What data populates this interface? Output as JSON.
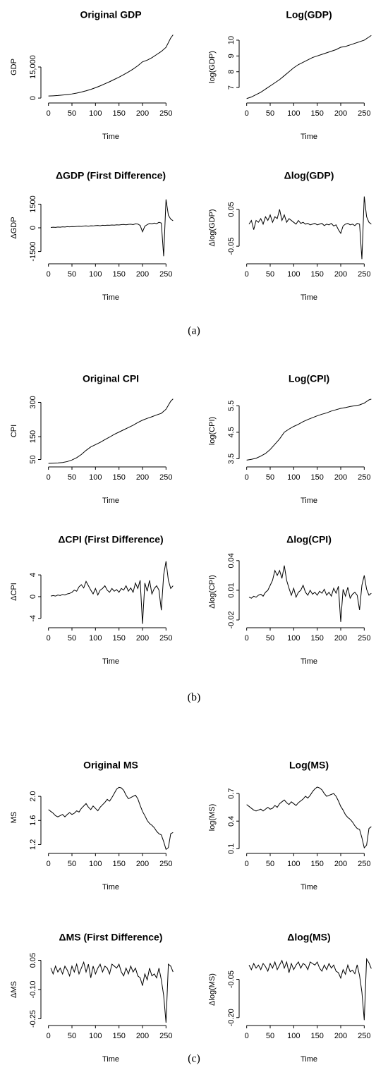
{
  "chart_data": [
    {
      "type": "line",
      "title": "Original GDP",
      "xlabel": "Time",
      "ylabel": "GDP",
      "xlim": [
        -10,
        275
      ],
      "ylim": [
        -1000,
        31000
      ],
      "xticks": [
        0,
        50,
        100,
        150,
        200,
        250
      ],
      "yticks": [
        0,
        {
          "value": 15000,
          "label": "15,000"
        }
      ],
      "x": [
        0,
        10,
        20,
        30,
        40,
        50,
        60,
        70,
        80,
        90,
        100,
        110,
        120,
        130,
        140,
        150,
        160,
        170,
        180,
        190,
        200,
        210,
        220,
        230,
        240,
        250,
        260,
        265
      ],
      "values": [
        1000,
        1100,
        1250,
        1450,
        1700,
        2000,
        2400,
        2900,
        3500,
        4200,
        5000,
        5900,
        6900,
        7900,
        9000,
        10100,
        11300,
        12600,
        14000,
        15600,
        17500,
        18300,
        19500,
        21000,
        22500,
        24500,
        29000,
        30500
      ]
    },
    {
      "type": "line",
      "title": "Log(GDP)",
      "xlabel": "Time",
      "ylabel": "log(GDP)",
      "xlim": [
        -10,
        275
      ],
      "ylim": [
        6.2,
        10.4
      ],
      "xticks": [
        0,
        50,
        100,
        150,
        200,
        250
      ],
      "yticks": [
        7,
        8,
        9,
        10
      ],
      "x": [
        0,
        10,
        20,
        30,
        40,
        50,
        60,
        70,
        80,
        90,
        100,
        110,
        120,
        130,
        140,
        150,
        160,
        170,
        180,
        190,
        200,
        210,
        220,
        230,
        240,
        250,
        260,
        265
      ],
      "values": [
        6.3,
        6.4,
        6.55,
        6.7,
        6.9,
        7.1,
        7.3,
        7.5,
        7.75,
        8.0,
        8.25,
        8.45,
        8.6,
        8.75,
        8.9,
        9.0,
        9.1,
        9.2,
        9.3,
        9.4,
        9.55,
        9.6,
        9.7,
        9.8,
        9.9,
        10.0,
        10.2,
        10.3
      ]
    },
    {
      "type": "line",
      "title": "ΔGDP (First Difference)",
      "xlabel": "Time",
      "ylabel": "ΔGDP",
      "xlim": [
        -10,
        275
      ],
      "ylim": [
        -2100,
        2100
      ],
      "xticks": [
        0,
        50,
        100,
        150,
        200,
        250
      ],
      "yticks": [
        -1500,
        0,
        1500
      ],
      "x": [
        5,
        10,
        15,
        20,
        25,
        30,
        35,
        40,
        45,
        50,
        55,
        60,
        65,
        70,
        75,
        80,
        85,
        90,
        95,
        100,
        105,
        110,
        115,
        120,
        125,
        130,
        135,
        140,
        145,
        150,
        155,
        160,
        165,
        170,
        175,
        180,
        185,
        190,
        195,
        200,
        205,
        210,
        215,
        220,
        225,
        230,
        235,
        240,
        245,
        250,
        255,
        260,
        265
      ],
      "values": [
        20,
        40,
        30,
        50,
        40,
        60,
        50,
        70,
        60,
        80,
        70,
        90,
        100,
        90,
        110,
        120,
        100,
        130,
        120,
        140,
        150,
        130,
        160,
        150,
        170,
        160,
        180,
        170,
        190,
        180,
        200,
        210,
        190,
        220,
        230,
        200,
        250,
        240,
        150,
        -250,
        100,
        200,
        280,
        250,
        300,
        260,
        350,
        300,
        -1800,
        1800,
        800,
        550,
        450
      ]
    },
    {
      "type": "line",
      "title": "Δlog(GDP)",
      "xlabel": "Time",
      "ylabel": "Δlog(GDP)",
      "xlim": [
        -10,
        275
      ],
      "ylim": [
        -0.09,
        0.09
      ],
      "xticks": [
        0,
        50,
        100,
        150,
        200,
        250
      ],
      "yticks": [
        -0.05,
        0.05
      ],
      "x": [
        5,
        10,
        15,
        20,
        25,
        30,
        35,
        40,
        45,
        50,
        55,
        60,
        65,
        70,
        75,
        80,
        85,
        90,
        95,
        100,
        105,
        110,
        115,
        120,
        125,
        130,
        135,
        140,
        145,
        150,
        155,
        160,
        165,
        170,
        175,
        180,
        185,
        190,
        195,
        200,
        205,
        210,
        215,
        220,
        225,
        230,
        235,
        240,
        245,
        250,
        255,
        260,
        265
      ],
      "values": [
        0.01,
        0.02,
        -0.005,
        0.02,
        0.015,
        0.025,
        0.01,
        0.03,
        0.02,
        0.035,
        0.015,
        0.03,
        0.025,
        0.05,
        0.02,
        0.035,
        0.015,
        0.025,
        0.02,
        0.015,
        0.01,
        0.02,
        0.012,
        0.015,
        0.01,
        0.012,
        0.008,
        0.01,
        0.012,
        0.008,
        0.01,
        0.012,
        0.006,
        0.01,
        0.008,
        0.012,
        0.005,
        0.008,
        -0.005,
        -0.015,
        0.005,
        0.01,
        0.012,
        0.008,
        0.01,
        0.006,
        0.012,
        0.01,
        -0.085,
        0.085,
        0.03,
        0.015,
        0.01
      ]
    },
    {
      "type": "line",
      "title": "Original CPI",
      "xlabel": "Time",
      "ylabel": "CPI",
      "xlim": [
        -10,
        275
      ],
      "ylim": [
        30,
        320
      ],
      "xticks": [
        0,
        50,
        100,
        150,
        200,
        250
      ],
      "yticks": [
        50,
        150,
        300
      ],
      "x": [
        0,
        10,
        20,
        30,
        40,
        50,
        60,
        70,
        80,
        90,
        100,
        110,
        120,
        130,
        140,
        150,
        160,
        170,
        180,
        190,
        200,
        210,
        220,
        230,
        240,
        250,
        260,
        265
      ],
      "values": [
        33,
        34,
        35,
        37,
        41,
        48,
        58,
        72,
        90,
        105,
        115,
        125,
        137,
        148,
        160,
        170,
        180,
        190,
        200,
        212,
        222,
        230,
        237,
        245,
        252,
        270,
        305,
        315
      ]
    },
    {
      "type": "line",
      "title": "Log(CPI)",
      "xlabel": "Time",
      "ylabel": "log(CPI)",
      "xlim": [
        -10,
        275
      ],
      "ylim": [
        3.3,
        5.8
      ],
      "xticks": [
        0,
        50,
        100,
        150,
        200,
        250
      ],
      "yticks": [
        3.5,
        4.5,
        5.5
      ],
      "x": [
        0,
        10,
        20,
        30,
        40,
        50,
        60,
        70,
        80,
        90,
        100,
        110,
        120,
        130,
        140,
        150,
        160,
        170,
        180,
        190,
        200,
        210,
        220,
        230,
        240,
        250,
        260,
        265
      ],
      "values": [
        3.45,
        3.48,
        3.52,
        3.6,
        3.7,
        3.85,
        4.05,
        4.25,
        4.5,
        4.62,
        4.72,
        4.8,
        4.9,
        4.98,
        5.05,
        5.12,
        5.18,
        5.23,
        5.3,
        5.35,
        5.4,
        5.43,
        5.47,
        5.5,
        5.53,
        5.6,
        5.72,
        5.75
      ]
    },
    {
      "type": "line",
      "title": "ΔCPI (First Difference)",
      "xlabel": "Time",
      "ylabel": "ΔCPI",
      "xlim": [
        -10,
        275
      ],
      "ylim": [
        -5.2,
        7
      ],
      "xticks": [
        0,
        50,
        100,
        150,
        200,
        250
      ],
      "yticks": [
        -4,
        0,
        4
      ],
      "x": [
        5,
        10,
        15,
        20,
        25,
        30,
        35,
        40,
        45,
        50,
        55,
        60,
        65,
        70,
        75,
        80,
        85,
        90,
        95,
        100,
        105,
        110,
        115,
        120,
        125,
        130,
        135,
        140,
        145,
        150,
        155,
        160,
        165,
        170,
        175,
        180,
        185,
        190,
        195,
        200,
        205,
        210,
        215,
        220,
        225,
        230,
        235,
        240,
        245,
        250,
        255,
        260,
        265
      ],
      "values": [
        0.1,
        0.2,
        0.1,
        0.3,
        0.2,
        0.4,
        0.3,
        0.5,
        0.6,
        0.8,
        1.2,
        1.0,
        1.8,
        2.2,
        1.6,
        2.8,
        2.0,
        1.2,
        0.5,
        1.5,
        0.3,
        1.2,
        1.5,
        2.0,
        1.2,
        0.8,
        1.5,
        1.0,
        1.3,
        0.8,
        1.5,
        1.2,
        2.0,
        1.0,
        1.6,
        0.8,
        2.5,
        1.5,
        3.0,
        -5.0,
        2.5,
        1.0,
        3.0,
        0.5,
        1.5,
        2.0,
        1.2,
        -2.5,
        4.0,
        6.5,
        3.0,
        1.5,
        2.0
      ]
    },
    {
      "type": "line",
      "title": "Δlog(CPI)",
      "xlabel": "Time",
      "ylabel": "Δlog(CPI)",
      "xlim": [
        -10,
        275
      ],
      "ylim": [
        -0.025,
        0.042
      ],
      "xticks": [
        0,
        50,
        100,
        150,
        200,
        250
      ],
      "yticks": [
        -0.02,
        0.01,
        0.04
      ],
      "x": [
        5,
        10,
        15,
        20,
        25,
        30,
        35,
        40,
        45,
        50,
        55,
        60,
        65,
        70,
        75,
        80,
        85,
        90,
        95,
        100,
        105,
        110,
        115,
        120,
        125,
        130,
        135,
        140,
        145,
        150,
        155,
        160,
        165,
        170,
        175,
        180,
        185,
        190,
        195,
        200,
        205,
        210,
        215,
        220,
        225,
        230,
        235,
        240,
        245,
        250,
        255,
        260,
        265
      ],
      "values": [
        0.003,
        0.002,
        0.004,
        0.003,
        0.005,
        0.006,
        0.004,
        0.008,
        0.01,
        0.015,
        0.02,
        0.03,
        0.025,
        0.03,
        0.022,
        0.035,
        0.02,
        0.012,
        0.005,
        0.012,
        0.003,
        0.008,
        0.01,
        0.015,
        0.008,
        0.005,
        0.01,
        0.006,
        0.008,
        0.005,
        0.009,
        0.007,
        0.011,
        0.005,
        0.008,
        0.004,
        0.012,
        0.007,
        0.014,
        -0.022,
        0.011,
        0.004,
        0.013,
        0.002,
        0.006,
        0.008,
        0.005,
        -0.01,
        0.015,
        0.025,
        0.011,
        0.005,
        0.007
      ]
    },
    {
      "type": "line",
      "title": "Original MS",
      "xlabel": "Time",
      "ylabel": "MS",
      "xlim": [
        -10,
        275
      ],
      "ylim": [
        1.1,
        2.2
      ],
      "xticks": [
        0,
        50,
        100,
        150,
        200,
        250
      ],
      "yticks": [
        1.2,
        1.6,
        {
          "value": 2,
          "label": "2.0"
        }
      ],
      "x": [
        0,
        5,
        10,
        15,
        20,
        25,
        30,
        35,
        40,
        45,
        50,
        55,
        60,
        65,
        70,
        75,
        80,
        85,
        90,
        95,
        100,
        105,
        110,
        115,
        120,
        125,
        130,
        135,
        140,
        145,
        150,
        155,
        160,
        165,
        170,
        175,
        180,
        185,
        190,
        195,
        200,
        205,
        210,
        215,
        220,
        225,
        230,
        235,
        240,
        245,
        250,
        255,
        260,
        265
      ],
      "values": [
        1.78,
        1.75,
        1.72,
        1.68,
        1.66,
        1.68,
        1.7,
        1.66,
        1.7,
        1.73,
        1.7,
        1.72,
        1.76,
        1.74,
        1.8,
        1.84,
        1.88,
        1.82,
        1.78,
        1.84,
        1.8,
        1.76,
        1.82,
        1.86,
        1.9,
        1.95,
        1.92,
        1.98,
        2.05,
        2.12,
        2.15,
        2.14,
        2.1,
        2.02,
        1.96,
        1.98,
        2.0,
        2.02,
        1.96,
        1.85,
        1.75,
        1.68,
        1.6,
        1.55,
        1.52,
        1.48,
        1.42,
        1.38,
        1.36,
        1.25,
        1.12,
        1.15,
        1.38,
        1.4
      ]
    },
    {
      "type": "line",
      "title": "Log(MS)",
      "xlabel": "Time",
      "ylabel": "log(MS)",
      "xlim": [
        -10,
        275
      ],
      "ylim": [
        0.08,
        0.8
      ],
      "xticks": [
        0,
        50,
        100,
        150,
        200,
        250
      ],
      "yticks": [
        0.1,
        0.4,
        0.7
      ],
      "x": [
        0,
        5,
        10,
        15,
        20,
        25,
        30,
        35,
        40,
        45,
        50,
        55,
        60,
        65,
        70,
        75,
        80,
        85,
        90,
        95,
        100,
        105,
        110,
        115,
        120,
        125,
        130,
        135,
        140,
        145,
        150,
        155,
        160,
        165,
        170,
        175,
        180,
        185,
        190,
        195,
        200,
        205,
        210,
        215,
        220,
        225,
        230,
        235,
        240,
        245,
        250,
        255,
        260,
        265
      ],
      "values": [
        0.58,
        0.56,
        0.54,
        0.52,
        0.51,
        0.52,
        0.53,
        0.51,
        0.53,
        0.55,
        0.53,
        0.54,
        0.57,
        0.55,
        0.59,
        0.61,
        0.63,
        0.6,
        0.58,
        0.61,
        0.59,
        0.57,
        0.6,
        0.62,
        0.64,
        0.67,
        0.65,
        0.68,
        0.72,
        0.75,
        0.77,
        0.76,
        0.74,
        0.7,
        0.67,
        0.68,
        0.69,
        0.7,
        0.67,
        0.62,
        0.56,
        0.52,
        0.47,
        0.44,
        0.42,
        0.39,
        0.35,
        0.32,
        0.31,
        0.22,
        0.11,
        0.14,
        0.32,
        0.34
      ]
    },
    {
      "type": "line",
      "title": "ΔMS (First Difference)",
      "xlabel": "Time",
      "ylabel": "ΔMS",
      "xlim": [
        -10,
        275
      ],
      "ylim": [
        -0.27,
        0.07
      ],
      "xticks": [
        0,
        50,
        100,
        150,
        200,
        250
      ],
      "yticks": [
        -0.25,
        {
          "value": -0.1,
          "label": "-0.10"
        },
        0.05
      ],
      "x": [
        5,
        10,
        15,
        20,
        25,
        30,
        35,
        40,
        45,
        50,
        55,
        60,
        65,
        70,
        75,
        80,
        85,
        90,
        95,
        100,
        105,
        110,
        115,
        120,
        125,
        130,
        135,
        140,
        145,
        150,
        155,
        160,
        165,
        170,
        175,
        180,
        185,
        190,
        195,
        200,
        205,
        210,
        215,
        220,
        225,
        230,
        235,
        240,
        245,
        250,
        255,
        260,
        265
      ],
      "values": [
        0.01,
        -0.02,
        0.02,
        -0.01,
        0.01,
        -0.02,
        0.02,
        0,
        -0.03,
        0.02,
        -0.01,
        0.03,
        -0.02,
        0.01,
        0.04,
        -0.01,
        0.03,
        -0.04,
        0.02,
        -0.02,
        0.01,
        0.03,
        -0.01,
        0.02,
        0.01,
        -0.02,
        0.03,
        0.02,
        0.01,
        0.03,
        -0.01,
        -0.03,
        0.01,
        -0.02,
        0.02,
        -0.01,
        0.01,
        -0.03,
        -0.04,
        -0.08,
        -0.02,
        -0.05,
        0.01,
        -0.03,
        -0.02,
        -0.04,
        0.01,
        -0.05,
        -0.13,
        -0.27,
        0.03,
        0.02,
        -0.01
      ]
    },
    {
      "type": "line",
      "title": "Δlog(MS)",
      "xlabel": "Time",
      "ylabel": "Δlog(MS)",
      "xlim": [
        -10,
        275
      ],
      "ylim": [
        -0.22,
        0.04
      ],
      "xticks": [
        0,
        50,
        100,
        150,
        200,
        250
      ],
      "yticks": [
        {
          "value": -0.2,
          "label": "-0.20"
        },
        -0.05
      ],
      "x": [
        5,
        10,
        15,
        20,
        25,
        30,
        35,
        40,
        45,
        50,
        55,
        60,
        65,
        70,
        75,
        80,
        85,
        90,
        95,
        100,
        105,
        110,
        115,
        120,
        125,
        130,
        135,
        140,
        145,
        150,
        155,
        160,
        165,
        170,
        175,
        180,
        185,
        190,
        195,
        200,
        205,
        210,
        215,
        220,
        225,
        230,
        235,
        240,
        245,
        250,
        255,
        260,
        265
      ],
      "values": [
        0.006,
        -0.012,
        0.012,
        -0.006,
        0.006,
        -0.012,
        0.012,
        0,
        -0.018,
        0.012,
        -0.006,
        0.018,
        -0.012,
        0.006,
        0.024,
        -0.006,
        0.018,
        -0.024,
        0.012,
        -0.012,
        0.006,
        0.018,
        -0.006,
        0.012,
        0.006,
        -0.012,
        0.018,
        0.012,
        0.006,
        0.018,
        -0.006,
        -0.018,
        0.006,
        -0.012,
        0.012,
        -0.006,
        0.006,
        -0.018,
        -0.024,
        -0.045,
        -0.012,
        -0.03,
        0.006,
        -0.02,
        -0.014,
        -0.028,
        0.007,
        -0.035,
        -0.1,
        -0.21,
        0.03,
        0.015,
        -0.008
      ]
    }
  ],
  "panel_labels": [
    "(a)",
    "(b)",
    "(c)"
  ]
}
